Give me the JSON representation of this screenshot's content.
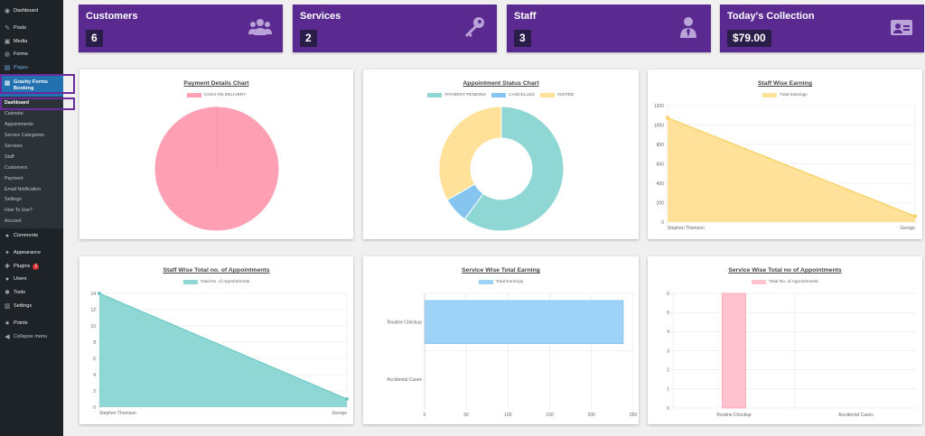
{
  "sidebar": {
    "items": [
      {
        "label": "Dashboard",
        "icon": "dashboard-icon",
        "glyph": "◉"
      },
      {
        "label": "Posts",
        "icon": "pin-icon",
        "glyph": "✎"
      },
      {
        "label": "Media",
        "icon": "media-icon",
        "glyph": "▣"
      },
      {
        "label": "Forms",
        "icon": "forms-icon",
        "glyph": "◍"
      },
      {
        "label": "Pages",
        "icon": "pages-icon",
        "glyph": "▤"
      },
      {
        "label": "Gravity Forms Booking",
        "icon": "calendar-icon",
        "glyph": "▦"
      },
      {
        "label": "Comments",
        "icon": "comment-icon",
        "glyph": "●"
      },
      {
        "label": "Appearance",
        "icon": "brush-icon",
        "glyph": "✦"
      },
      {
        "label": "Plugins",
        "icon": "plugin-icon",
        "glyph": "✚",
        "badge": "1"
      },
      {
        "label": "Users",
        "icon": "users-icon",
        "glyph": "●"
      },
      {
        "label": "Tools",
        "icon": "wrench-icon",
        "glyph": "✱"
      },
      {
        "label": "Settings",
        "icon": "settings-icon",
        "glyph": "▥"
      },
      {
        "label": "Points",
        "icon": "star-icon",
        "glyph": "★"
      },
      {
        "label": "Collapse menu",
        "icon": "collapse-icon",
        "glyph": "◀"
      }
    ],
    "submenu": [
      "Dashboard",
      "Calendar",
      "Appointments",
      "Service Categories",
      "Services",
      "Staff",
      "Customers",
      "Payment",
      "Email Notification",
      "Settings",
      "How To Use?",
      "Account"
    ]
  },
  "stats": [
    {
      "title": "Customers",
      "value": "6",
      "icon": "users-group-icon"
    },
    {
      "title": "Services",
      "value": "2",
      "icon": "key-icon"
    },
    {
      "title": "Staff",
      "value": "3",
      "icon": "user-tie-icon"
    },
    {
      "title": "Today's Collection",
      "value": "$79.00",
      "icon": "id-card-icon"
    }
  ],
  "chart_data": [
    {
      "type": "pie",
      "title": "Payment Details Chart",
      "labels": [
        "CASH ON DELIVERY"
      ],
      "values": [
        100
      ],
      "colors": [
        "#ff9fb3"
      ]
    },
    {
      "type": "doughnut",
      "title": "Appointment Status Chart",
      "labels": [
        "PAYMENT PENDING",
        "CANCELLED",
        "VISITED"
      ],
      "values": [
        9,
        1,
        5
      ],
      "colors": [
        "#8fd7d4",
        "#86c5f0",
        "#ffe199"
      ]
    },
    {
      "type": "area",
      "title": "Staff Wise Earning",
      "series": [
        {
          "name": "Total Earnings",
          "values": [
            1075,
            60
          ]
        }
      ],
      "categories": [
        "Stephen Thomson",
        "George"
      ],
      "ylim": [
        0,
        1200
      ],
      "yticks": [
        0,
        200,
        400,
        600,
        800,
        1000,
        1200
      ],
      "color": "#ffe199",
      "line": "#f9cf5f"
    },
    {
      "type": "area",
      "title": "Staff Wise Total no. of Appointments",
      "series": [
        {
          "name": "Total No. of Appointments",
          "values": [
            14,
            1
          ]
        }
      ],
      "categories": [
        "Stephen Thomson",
        "George"
      ],
      "ylim": [
        0,
        14
      ],
      "yticks": [
        0,
        2,
        4,
        6,
        8,
        10,
        12,
        14
      ],
      "color": "#8fd7d4",
      "line": "#6cc9c4"
    },
    {
      "type": "bar",
      "orientation": "horizontal",
      "title": "Service Wise Total Earning",
      "series": [
        {
          "name": "Total Earnings",
          "values": [
            238,
            0
          ]
        }
      ],
      "categories": [
        "Routine Checkup",
        "Accidental Cases"
      ],
      "xlim": [
        0,
        250
      ],
      "xticks": [
        0,
        50,
        100,
        150,
        200,
        250
      ],
      "color": "#9ed3f7",
      "line": "#7ec0ee"
    },
    {
      "type": "bar",
      "title": "Service Wise Total no of Appointments",
      "series": [
        {
          "name": "Total No. of Appointments",
          "values": [
            6,
            0
          ]
        }
      ],
      "categories": [
        "Routine Checkup",
        "Accidental Cases"
      ],
      "ylim": [
        0,
        6
      ],
      "yticks": [
        0,
        1,
        2,
        3,
        4,
        5,
        6
      ],
      "color": "#ffc2cf",
      "line": "#ff9fb3"
    }
  ]
}
